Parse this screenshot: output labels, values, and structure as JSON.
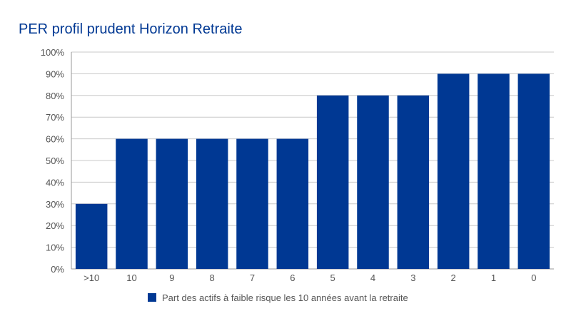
{
  "chart_data": {
    "type": "bar",
    "title": "PER profil prudent Horizon Retraite",
    "xlabel": "",
    "ylabel": "",
    "categories": [
      ">10",
      "10",
      "9",
      "8",
      "7",
      "6",
      "5",
      "4",
      "3",
      "2",
      "1",
      "0"
    ],
    "series": [
      {
        "name": "Part des actifs à faible risque les 10 années avant la retraite",
        "values": [
          30,
          60,
          60,
          60,
          60,
          60,
          80,
          80,
          80,
          90,
          90,
          90
        ]
      }
    ],
    "ylim": [
      0,
      100
    ],
    "yticks": [
      "0%",
      "10%",
      "20%",
      "30%",
      "40%",
      "50%",
      "60%",
      "70%",
      "80%",
      "90%",
      "100%"
    ],
    "grid": true,
    "legend_position": "bottom",
    "colors": {
      "bar": "#003893",
      "title": "#003893",
      "grid": "#c8c8c8",
      "axis": "#999999",
      "text": "#555555"
    }
  }
}
